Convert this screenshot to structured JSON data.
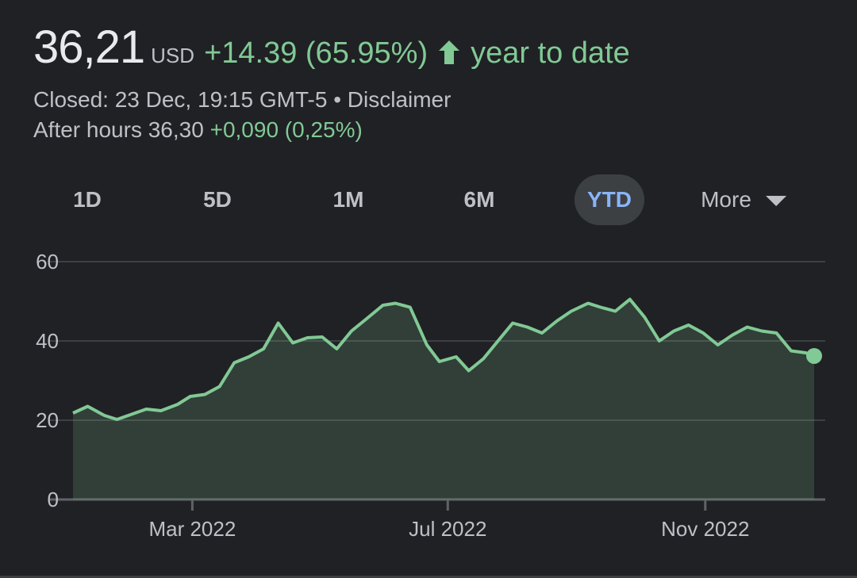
{
  "quote": {
    "price": "36,21",
    "currency": "USD",
    "change": "+14.39 (65.95%)",
    "period": "year to date",
    "closed_text": "Closed: 23 Dec, 19:15 GMT-5",
    "separator": "•",
    "disclaimer": "Disclaimer",
    "after_hours_label": "After hours 36,30",
    "after_hours_change": "+0,090 (0,25%)"
  },
  "tabs": [
    {
      "label": "1D"
    },
    {
      "label": "5D"
    },
    {
      "label": "1M"
    },
    {
      "label": "6M"
    },
    {
      "label": "YTD"
    },
    {
      "label": "More"
    }
  ],
  "icons": {
    "up": "arrow-up-icon",
    "dropdown": "caret-down-icon"
  },
  "colors": {
    "positive": "#81c995",
    "active_tab_text": "#8ab4f8",
    "active_tab_bg": "#3c4043",
    "background": "#202124"
  },
  "chart_data": {
    "type": "area",
    "x_ticks": [
      "Mar 2022",
      "Jul 2022",
      "Nov 2022"
    ],
    "y_ticks": [
      "60",
      "40",
      "20",
      "0"
    ],
    "ylim": [
      0,
      60
    ],
    "grid": true,
    "x_start": "2022-01-03",
    "x_end": "2022-12-23",
    "x": [
      "2022-01-03",
      "2022-01-10",
      "2022-01-18",
      "2022-01-24",
      "2022-01-31",
      "2022-02-07",
      "2022-02-14",
      "2022-02-22",
      "2022-02-28",
      "2022-03-07",
      "2022-03-14",
      "2022-03-21",
      "2022-03-28",
      "2022-04-04",
      "2022-04-11",
      "2022-04-18",
      "2022-04-25",
      "2022-05-02",
      "2022-05-09",
      "2022-05-16",
      "2022-05-23",
      "2022-05-31",
      "2022-06-06",
      "2022-06-13",
      "2022-06-21",
      "2022-06-27",
      "2022-07-05",
      "2022-07-11",
      "2022-07-18",
      "2022-07-25",
      "2022-08-01",
      "2022-08-08",
      "2022-08-15",
      "2022-08-22",
      "2022-08-29",
      "2022-09-06",
      "2022-09-12",
      "2022-09-19",
      "2022-09-26",
      "2022-10-03",
      "2022-10-10",
      "2022-10-17",
      "2022-10-24",
      "2022-10-31",
      "2022-11-07",
      "2022-11-14",
      "2022-11-21",
      "2022-11-28",
      "2022-12-05",
      "2022-12-12",
      "2022-12-19",
      "2022-12-23"
    ],
    "y": [
      21.8,
      23.5,
      21.2,
      20.2,
      21.5,
      22.8,
      22.4,
      24.0,
      26.0,
      26.5,
      28.5,
      34.5,
      36.0,
      38.0,
      44.5,
      39.5,
      40.8,
      41.0,
      38.0,
      42.5,
      45.5,
      49.0,
      49.5,
      48.5,
      39.0,
      34.8,
      36.0,
      32.5,
      35.5,
      40.0,
      44.5,
      43.5,
      42.0,
      45.0,
      47.5,
      49.5,
      48.5,
      47.5,
      50.5,
      46.0,
      40.0,
      42.5,
      44.0,
      42.0,
      39.0,
      41.5,
      43.5,
      42.5,
      42.0,
      37.5,
      37.0,
      36.21
    ]
  }
}
